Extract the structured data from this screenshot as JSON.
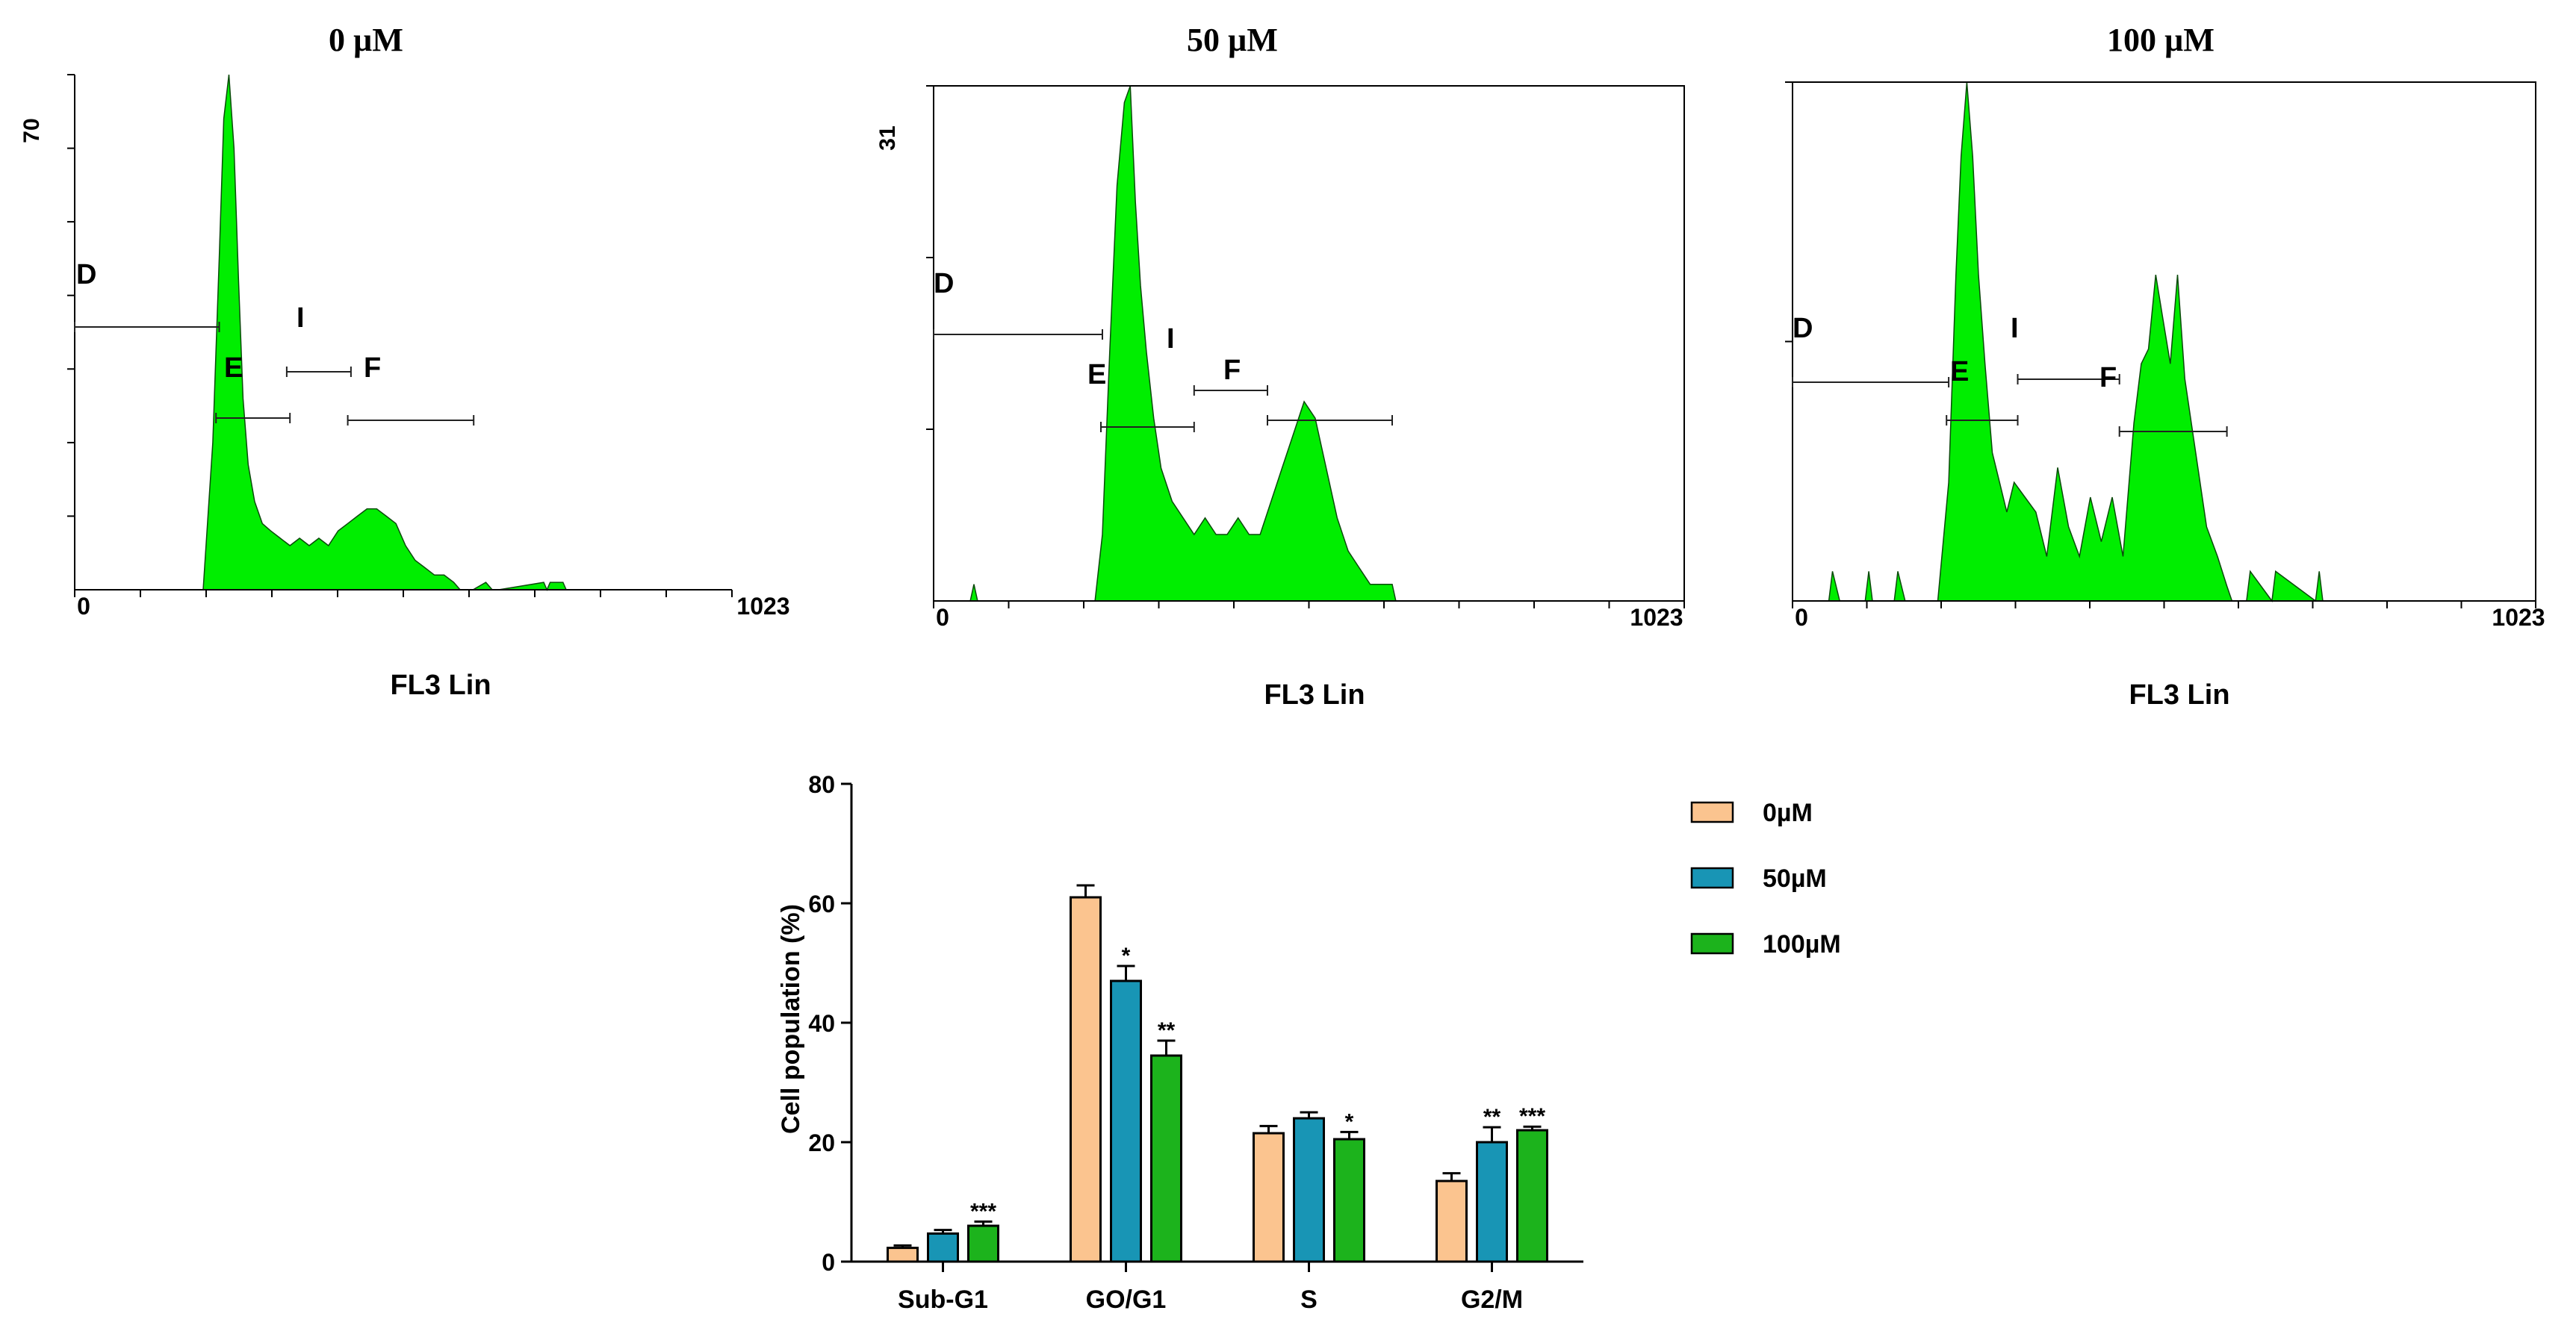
{
  "chart_data": [
    {
      "type": "area",
      "id": "hist0",
      "title": "0 µM",
      "xlabel": "FL3 Lin",
      "x_tick_labels": [
        "0",
        "1023"
      ],
      "xlim": [
        0,
        1023
      ],
      "y_max_label": "70",
      "ylim": [
        0,
        70
      ],
      "fill_color": "#00ee00",
      "gate_labels": [
        "D",
        "E",
        "I",
        "F"
      ],
      "gates": [
        {
          "name": "D",
          "x_range": [
            0,
            225
          ]
        },
        {
          "name": "E",
          "x_range": [
            220,
            335
          ]
        },
        {
          "name": "I",
          "x_range": [
            330,
            430
          ]
        },
        {
          "name": "F",
          "x_range": [
            425,
            621
          ]
        }
      ],
      "histogram": {
        "x": [
          200,
          215,
          225,
          232,
          240,
          248,
          255,
          262,
          270,
          280,
          292,
          305,
          320,
          335,
          350,
          365,
          380,
          395,
          410,
          425,
          440,
          455,
          470,
          485,
          500,
          515,
          530,
          545,
          560,
          575,
          590,
          600,
          610,
          620,
          640,
          650,
          660,
          730,
          735,
          740,
          760,
          765
        ],
        "y": [
          0,
          20,
          45,
          64,
          70,
          60,
          42,
          26,
          17,
          12,
          9,
          8,
          7,
          6,
          7,
          6,
          7,
          6,
          8,
          9,
          10,
          11,
          11,
          10,
          9,
          6,
          4,
          3,
          2,
          2,
          1,
          0,
          0,
          0,
          1,
          0,
          0,
          1,
          0,
          1,
          1,
          0
        ]
      }
    },
    {
      "type": "area",
      "id": "hist50",
      "title": "50 µM",
      "xlabel": "FL3 Lin",
      "x_tick_labels": [
        "0",
        "1023"
      ],
      "xlim": [
        0,
        1023
      ],
      "y_max_label": "31",
      "ylim": [
        0,
        31
      ],
      "fill_color": "#00ee00",
      "gate_labels": [
        "D",
        "E",
        "I",
        "F"
      ],
      "gates": [
        {
          "name": "D",
          "x_range": [
            0,
            230
          ]
        },
        {
          "name": "E",
          "x_range": [
            228,
            355
          ]
        },
        {
          "name": "I",
          "x_range": [
            355,
            455
          ]
        },
        {
          "name": "F",
          "x_range": [
            455,
            625
          ]
        }
      ],
      "histogram": {
        "x": [
          50,
          55,
          60,
          220,
          230,
          240,
          250,
          260,
          268,
          275,
          282,
          290,
          300,
          310,
          325,
          340,
          355,
          370,
          385,
          400,
          415,
          430,
          445,
          460,
          475,
          490,
          505,
          520,
          535,
          550,
          565,
          580,
          595,
          610,
          625,
          630
        ],
        "y": [
          0,
          1,
          0,
          0,
          4,
          15,
          25,
          30,
          31,
          24,
          19,
          15,
          11,
          8,
          6,
          5,
          4,
          5,
          4,
          4,
          5,
          4,
          4,
          6,
          8,
          10,
          12,
          11,
          8,
          5,
          3,
          2,
          1,
          1,
          1,
          0
        ]
      }
    },
    {
      "type": "area",
      "id": "hist100",
      "title": "100 µM",
      "xlabel": "FL3 Lin",
      "x_tick_labels": [
        "0",
        "1023"
      ],
      "xlim": [
        0,
        1023
      ],
      "ylim": [
        0,
        35
      ],
      "fill_color": "#00ee00",
      "gate_labels": [
        "D",
        "E",
        "I",
        "F"
      ],
      "gates": [
        {
          "name": "D",
          "x_range": [
            0,
            215
          ]
        },
        {
          "name": "E",
          "x_range": [
            212,
            310
          ]
        },
        {
          "name": "I",
          "x_range": [
            310,
            450
          ]
        },
        {
          "name": "F",
          "x_range": [
            450,
            598
          ]
        }
      ],
      "histogram": {
        "x": [
          50,
          55,
          65,
          100,
          105,
          110,
          140,
          145,
          155,
          200,
          215,
          225,
          232,
          240,
          248,
          256,
          265,
          275,
          285,
          295,
          305,
          320,
          335,
          350,
          365,
          380,
          395,
          410,
          425,
          440,
          455,
          470,
          480,
          490,
          500,
          510,
          520,
          530,
          540,
          555,
          570,
          585,
          598,
          605,
          625,
          630,
          660,
          665,
          720,
          725,
          730
        ],
        "y": [
          0,
          2,
          0,
          0,
          2,
          0,
          0,
          2,
          0,
          0,
          8,
          22,
          30,
          35,
          30,
          22,
          16,
          10,
          8,
          6,
          8,
          7,
          6,
          3,
          9,
          5,
          3,
          7,
          4,
          7,
          3,
          12,
          16,
          17,
          22,
          19,
          16,
          22,
          15,
          10,
          5,
          3,
          1,
          0,
          0,
          2,
          0,
          2,
          0,
          2,
          0
        ]
      }
    },
    {
      "type": "bar",
      "id": "bars",
      "ylabel": "Cell population (%)",
      "xlabel": "",
      "ylim": [
        0,
        80
      ],
      "y_ticks": [
        0,
        20,
        40,
        60,
        80
      ],
      "categories": [
        "Sub-G1",
        "GO/G1",
        "S",
        "G2/M"
      ],
      "series": [
        {
          "name": "0µM",
          "color": "#fbc48f",
          "values": [
            2.3,
            61,
            21.5,
            13.5
          ],
          "errors": [
            0.4,
            2,
            1.2,
            1.3
          ],
          "significance": [
            "",
            "",
            "",
            ""
          ]
        },
        {
          "name": "50µM",
          "color": "#1895b5",
          "values": [
            4.7,
            47,
            24,
            20
          ],
          "errors": [
            0.6,
            2.5,
            1,
            2.5
          ],
          "significance": [
            "",
            "*",
            "",
            "**"
          ]
        },
        {
          "name": "100µM",
          "color": "#1cb31c",
          "values": [
            6,
            34.5,
            20.5,
            22
          ],
          "errors": [
            0.7,
            2.5,
            1.2,
            0.6
          ],
          "significance": [
            "***",
            "**",
            "*",
            "***"
          ]
        }
      ]
    }
  ]
}
